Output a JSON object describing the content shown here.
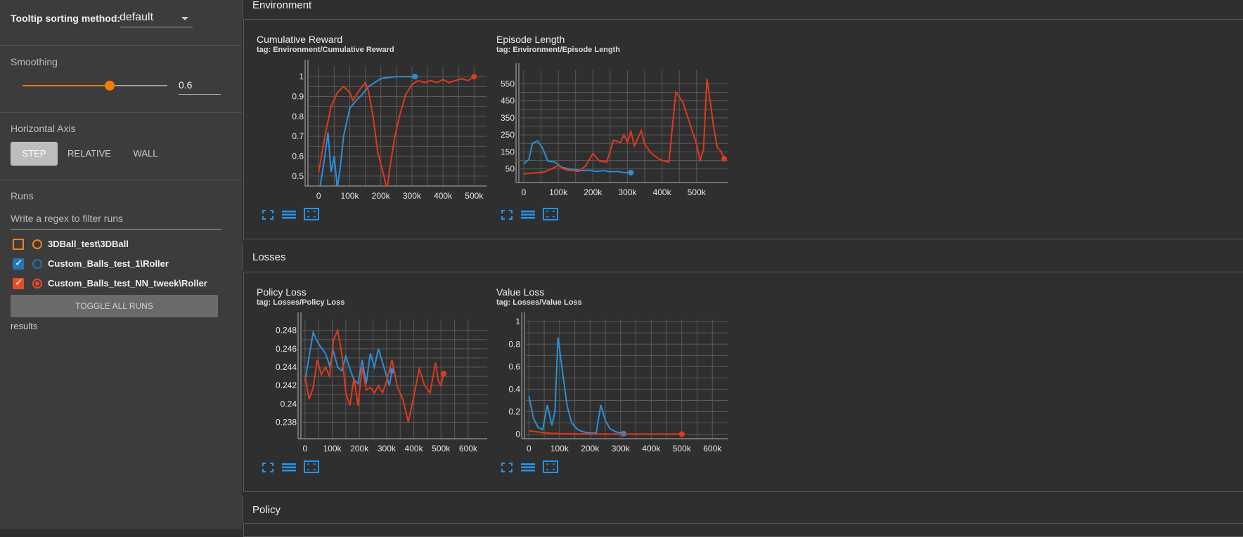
{
  "sidebar": {
    "tooltip_label": "Tooltip sorting method:",
    "tooltip_value": "default",
    "smoothing_label": "Smoothing",
    "smoothing_value": "0.6",
    "smoothing_fraction": 0.6,
    "axis_label": "Horizontal Axis",
    "axis_options": [
      "STEP",
      "RELATIVE",
      "WALL"
    ],
    "axis_selected": "STEP",
    "runs_label": "Runs",
    "runs_filter_placeholder": "Write a regex to filter runs",
    "runs": [
      {
        "name": "3DBall_test\\3DBall",
        "checked": false,
        "color": "#f5811f"
      },
      {
        "name": "Custom_Balls_test_1\\Roller",
        "checked": true,
        "color": "#1f77b4"
      },
      {
        "name": "Custom_Balls_test_NN_tweek\\Roller",
        "checked": true,
        "color": "#e84d25"
      }
    ],
    "toggle_label": "TOGGLE ALL RUNS",
    "results_label": "results"
  },
  "sections": [
    {
      "title": "Environment"
    },
    {
      "title": "Losses"
    },
    {
      "title": "Policy"
    }
  ],
  "colors": {
    "blue": "#2a8fd9",
    "red": "#e03a1b",
    "accent": "#f57c00",
    "icon": "#2196f3"
  },
  "chart_data": [
    {
      "type": "line",
      "title": "Cumulative Reward",
      "tag": "tag: Environment/Cumulative Reward",
      "xticks": [
        "0",
        "100k",
        "200k",
        "300k",
        "400k",
        "500k"
      ],
      "yticks": [
        "0.5",
        "0.6",
        "0.7",
        "0.8",
        "0.9",
        "1"
      ],
      "xlim": [
        -30000,
        540000
      ],
      "ylim": [
        0.45,
        1.05
      ],
      "series": [
        {
          "color": "blue",
          "points": [
            [
              0,
              0.4
            ],
            [
              20000,
              0.6
            ],
            [
              30000,
              0.72
            ],
            [
              40000,
              0.52
            ],
            [
              50000,
              0.6
            ],
            [
              60000,
              0.44
            ],
            [
              70000,
              0.55
            ],
            [
              80000,
              0.7
            ],
            [
              100000,
              0.84
            ],
            [
              120000,
              0.88
            ],
            [
              140000,
              0.91
            ],
            [
              160000,
              0.95
            ],
            [
              180000,
              0.97
            ],
            [
              200000,
              0.99
            ],
            [
              220000,
              0.995
            ],
            [
              250000,
              1.0
            ],
            [
              280000,
              1.0
            ],
            [
              310000,
              1.0
            ]
          ]
        },
        {
          "color": "red",
          "points": [
            [
              0,
              0.52
            ],
            [
              20000,
              0.7
            ],
            [
              40000,
              0.85
            ],
            [
              60000,
              0.92
            ],
            [
              80000,
              0.95
            ],
            [
              100000,
              0.92
            ],
            [
              110000,
              0.88
            ],
            [
              130000,
              0.93
            ],
            [
              150000,
              0.97
            ],
            [
              160000,
              0.93
            ],
            [
              175000,
              0.8
            ],
            [
              190000,
              0.62
            ],
            [
              210000,
              0.5
            ],
            [
              220000,
              0.43
            ],
            [
              230000,
              0.55
            ],
            [
              245000,
              0.7
            ],
            [
              260000,
              0.8
            ],
            [
              280000,
              0.91
            ],
            [
              300000,
              0.96
            ],
            [
              320000,
              0.98
            ],
            [
              340000,
              0.97
            ],
            [
              360000,
              0.98
            ],
            [
              380000,
              0.97
            ],
            [
              400000,
              0.985
            ],
            [
              420000,
              0.97
            ],
            [
              440000,
              0.98
            ],
            [
              460000,
              0.99
            ],
            [
              480000,
              0.98
            ],
            [
              500000,
              1.0
            ]
          ]
        }
      ]
    },
    {
      "type": "line",
      "title": "Episode Length",
      "tag": "tag: Environment/Episode Length",
      "xticks": [
        "0",
        "100k",
        "200k",
        "300k",
        "400k",
        "500k"
      ],
      "yticks": [
        "50",
        "150",
        "250",
        "350",
        "450",
        "550"
      ],
      "xlim": [
        -10000,
        590000
      ],
      "ylim": [
        -30,
        630
      ],
      "series": [
        {
          "color": "blue",
          "points": [
            [
              0,
              80
            ],
            [
              15000,
              105
            ],
            [
              25000,
              200
            ],
            [
              40000,
              215
            ],
            [
              55000,
              170
            ],
            [
              70000,
              95
            ],
            [
              90000,
              90
            ],
            [
              110000,
              60
            ],
            [
              130000,
              50
            ],
            [
              150000,
              45
            ],
            [
              170000,
              40
            ],
            [
              190000,
              42
            ],
            [
              210000,
              35
            ],
            [
              230000,
              40
            ],
            [
              250000,
              33
            ],
            [
              270000,
              35
            ],
            [
              290000,
              28
            ],
            [
              310000,
              28
            ]
          ]
        },
        {
          "color": "red",
          "points": [
            [
              0,
              20
            ],
            [
              20000,
              25
            ],
            [
              40000,
              28
            ],
            [
              60000,
              32
            ],
            [
              80000,
              50
            ],
            [
              100000,
              70
            ],
            [
              120000,
              45
            ],
            [
              140000,
              40
            ],
            [
              160000,
              35
            ],
            [
              180000,
              70
            ],
            [
              200000,
              140
            ],
            [
              220000,
              95
            ],
            [
              240000,
              90
            ],
            [
              260000,
              220
            ],
            [
              280000,
              205
            ],
            [
              290000,
              250
            ],
            [
              300000,
              205
            ],
            [
              310000,
              270
            ],
            [
              320000,
              185
            ],
            [
              340000,
              275
            ],
            [
              350000,
              195
            ],
            [
              370000,
              140
            ],
            [
              390000,
              110
            ],
            [
              400000,
              100
            ],
            [
              420000,
              90
            ],
            [
              440000,
              500
            ],
            [
              460000,
              445
            ],
            [
              480000,
              320
            ],
            [
              500000,
              195
            ],
            [
              510000,
              100
            ],
            [
              520000,
              160
            ],
            [
              530000,
              580
            ],
            [
              540000,
              440
            ],
            [
              550000,
              290
            ],
            [
              560000,
              175
            ],
            [
              570000,
              155
            ],
            [
              580000,
              110
            ]
          ]
        }
      ]
    },
    {
      "type": "line",
      "title": "Policy Loss",
      "tag": "tag: Losses/Policy Loss",
      "xticks": [
        "0",
        "100k",
        "200k",
        "300k",
        "400k",
        "500k",
        "600k"
      ],
      "yticks": [
        "0.238",
        "0.24",
        "0.242",
        "0.244",
        "0.246",
        "0.248"
      ],
      "xlim": [
        -10000,
        670000
      ],
      "ylim": [
        0.2362,
        0.2492
      ],
      "series": [
        {
          "color": "blue",
          "points": [
            [
              0,
              0.2425
            ],
            [
              15000,
              0.2452
            ],
            [
              30000,
              0.2478
            ],
            [
              45000,
              0.2468
            ],
            [
              60000,
              0.2461
            ],
            [
              75000,
              0.2455
            ],
            [
              90000,
              0.2442
            ],
            [
              105000,
              0.2457
            ],
            [
              120000,
              0.244
            ],
            [
              135000,
              0.2436
            ],
            [
              150000,
              0.2452
            ],
            [
              165000,
              0.2438
            ],
            [
              180000,
              0.2426
            ],
            [
              195000,
              0.2422
            ],
            [
              210000,
              0.2448
            ],
            [
              225000,
              0.2422
            ],
            [
              240000,
              0.2455
            ],
            [
              255000,
              0.244
            ],
            [
              270000,
              0.246
            ],
            [
              285000,
              0.2445
            ],
            [
              300000,
              0.243
            ],
            [
              310000,
              0.242
            ],
            [
              320000,
              0.2436
            ]
          ]
        },
        {
          "color": "red",
          "points": [
            [
              0,
              0.243
            ],
            [
              15000,
              0.2405
            ],
            [
              30000,
              0.2418
            ],
            [
              45000,
              0.2448
            ],
            [
              60000,
              0.2432
            ],
            [
              75000,
              0.244
            ],
            [
              90000,
              0.243
            ],
            [
              105000,
              0.247
            ],
            [
              120000,
              0.248
            ],
            [
              135000,
              0.2455
            ],
            [
              150000,
              0.2412
            ],
            [
              165000,
              0.2398
            ],
            [
              180000,
              0.2428
            ],
            [
              195000,
              0.2398
            ],
            [
              210000,
              0.244
            ],
            [
              225000,
              0.2415
            ],
            [
              240000,
              0.2418
            ],
            [
              255000,
              0.2412
            ],
            [
              270000,
              0.242
            ],
            [
              285000,
              0.2412
            ],
            [
              300000,
              0.2425
            ],
            [
              320000,
              0.2448
            ],
            [
              340000,
              0.2418
            ],
            [
              360000,
              0.2405
            ],
            [
              380000,
              0.238
            ],
            [
              400000,
              0.2408
            ],
            [
              420000,
              0.2438
            ],
            [
              440000,
              0.242
            ],
            [
              460000,
              0.2412
            ],
            [
              480000,
              0.2445
            ],
            [
              490000,
              0.2425
            ],
            [
              500000,
              0.242
            ],
            [
              510000,
              0.2433
            ]
          ]
        }
      ]
    },
    {
      "type": "line",
      "title": "Value Loss",
      "tag": "tag: Losses/Value Loss",
      "xticks": [
        "0",
        "100k",
        "200k",
        "300k",
        "400k",
        "500k",
        "600k"
      ],
      "yticks": [
        "0",
        "0.2",
        "0.4",
        "0.6",
        "0.8",
        "1"
      ],
      "xlim": [
        -10000,
        650000
      ],
      "ylim": [
        -0.04,
        1.02
      ],
      "series": [
        {
          "color": "blue",
          "points": [
            [
              0,
              0.34
            ],
            [
              15000,
              0.14
            ],
            [
              30000,
              0.06
            ],
            [
              45000,
              0.04
            ],
            [
              60000,
              0.26
            ],
            [
              75000,
              0.08
            ],
            [
              85000,
              0.2
            ],
            [
              95000,
              0.86
            ],
            [
              110000,
              0.55
            ],
            [
              125000,
              0.25
            ],
            [
              140000,
              0.1
            ],
            [
              160000,
              0.04
            ],
            [
              180000,
              0.02
            ],
            [
              200000,
              0.01
            ],
            [
              220000,
              0.01
            ],
            [
              235000,
              0.26
            ],
            [
              250000,
              0.12
            ],
            [
              265000,
              0.05
            ],
            [
              285000,
              0.02
            ],
            [
              305000,
              0.01
            ],
            [
              310000,
              0.005
            ]
          ]
        },
        {
          "color": "red",
          "points": [
            [
              0,
              0.03
            ],
            [
              30000,
              0.02
            ],
            [
              60000,
              0.01
            ],
            [
              100000,
              0.005
            ],
            [
              150000,
              0.003
            ],
            [
              200000,
              0.002
            ],
            [
              300000,
              0.001
            ],
            [
              400000,
              0.001
            ],
            [
              500000,
              0.001
            ]
          ]
        }
      ]
    }
  ]
}
